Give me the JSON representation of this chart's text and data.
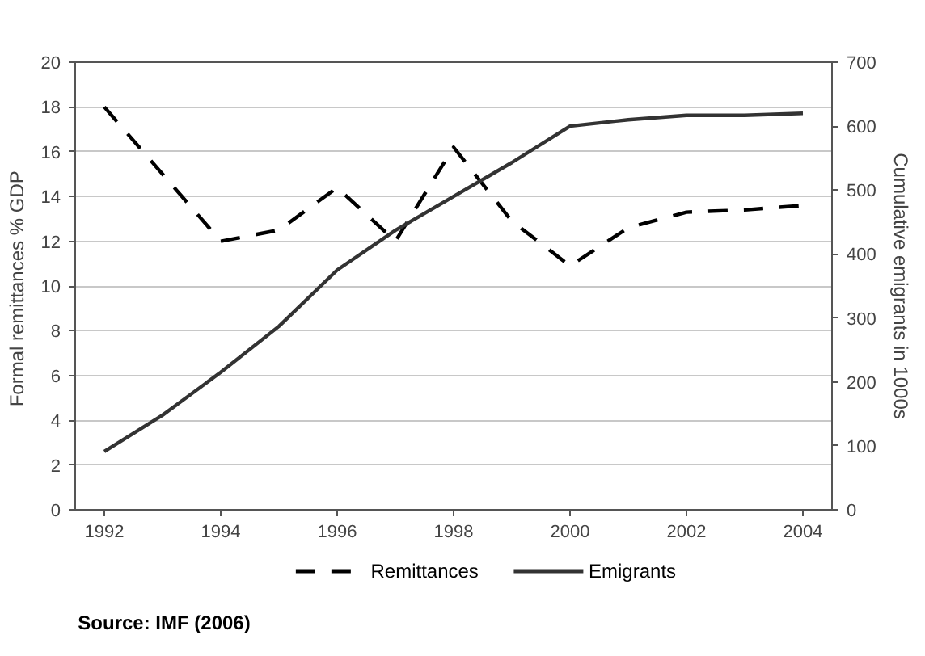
{
  "chart_data": {
    "type": "line",
    "xlabel": null,
    "ylabel": "Formal remittances %  GDP",
    "y2label": "Cumulative emigrants in 1000s",
    "x": [
      1992,
      1993,
      1994,
      1995,
      1996,
      1997,
      1998,
      1999,
      2000,
      2001,
      2002,
      2003,
      2004
    ],
    "series": [
      {
        "name": "Remittances",
        "color": "#000000",
        "line_style": "dashed",
        "values": [
          18,
          15,
          12,
          12.5,
          14.4,
          12,
          16.2,
          12.9,
          10.9,
          12.6,
          13.3,
          13.4,
          13.6
        ]
      },
      {
        "name": "Emigrants",
        "color": "#333333",
        "line_style": "solid",
        "axis": "y2",
        "values": [
          91,
          148,
          215,
          287,
          375,
          437,
          490,
          543,
          600,
          610,
          617,
          617,
          620
        ]
      }
    ],
    "xlim": [
      1991.5,
      2004.5
    ],
    "xticks": [
      1992,
      1994,
      1996,
      1998,
      2000,
      2002,
      2004
    ],
    "ylim": [
      0,
      20
    ],
    "yticks": [
      0,
      2,
      4,
      6,
      8,
      10,
      12,
      14,
      16,
      18,
      20
    ],
    "y2lim": [
      0,
      700
    ],
    "y2ticks": [
      0,
      100,
      200,
      300,
      400,
      500,
      600,
      700
    ],
    "grid": "y",
    "legend": "bottom",
    "marker": "none",
    "annotations": [
      "Source: IMF (2006)"
    ]
  }
}
